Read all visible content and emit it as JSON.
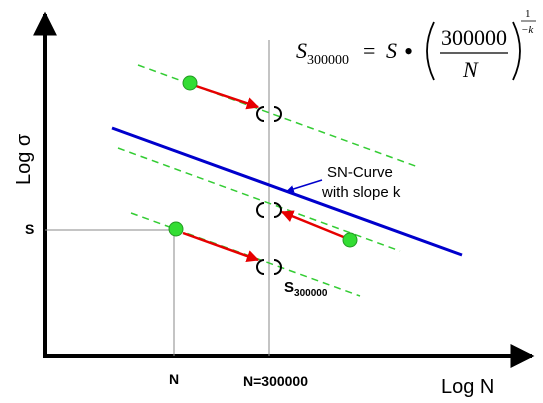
{
  "axes": {
    "y_label": "Log σ",
    "x_label": "Log N"
  },
  "ticks": {
    "s_label": "S",
    "n_label": "N",
    "n300k_label": "N=300000"
  },
  "formula": {
    "lhs_base": "S",
    "lhs_sub": "300000",
    "equals": "=",
    "rhs_base": "S",
    "operator": "•",
    "numerator": "300000",
    "denominator": "N",
    "exp_numerator": "1",
    "exp_denominator": "−k"
  },
  "annotations": {
    "sn_curve_line1": "SN-Curve",
    "sn_curve_line2": "with slope k",
    "s300k_base": "S",
    "s300k_sub": "300000"
  },
  "colors": {
    "axis": "#000000",
    "sn_curve": "#0000cc",
    "dashed_lines": "#33cc33",
    "arrows": "#e60000",
    "points": "#33dd33",
    "guide_lines": "#888888"
  }
}
